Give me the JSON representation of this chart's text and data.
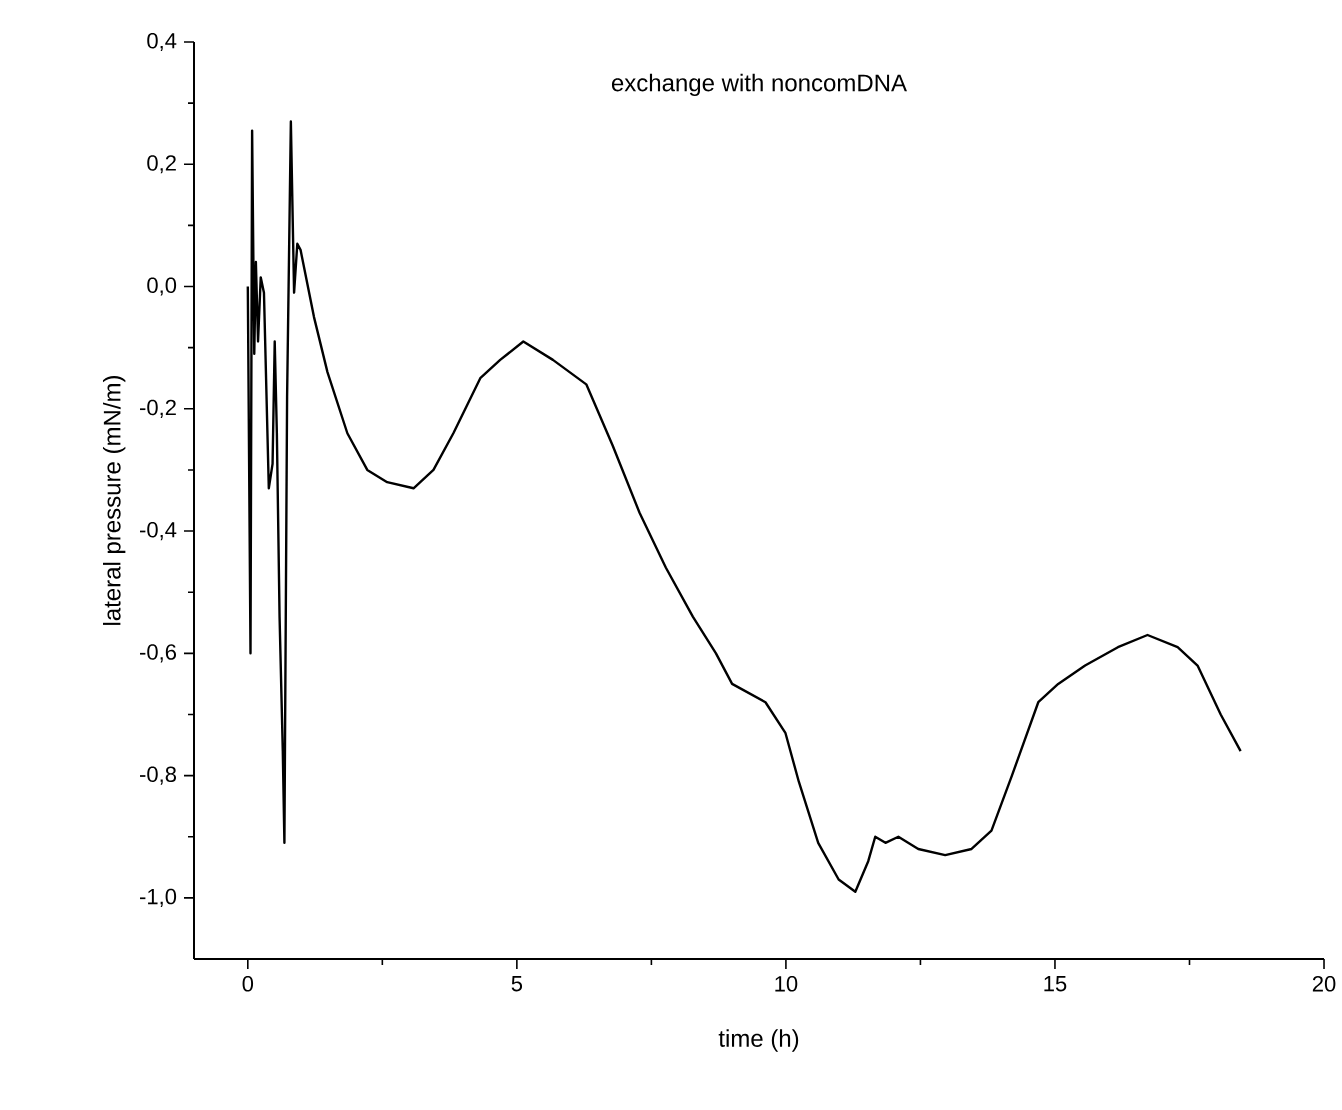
{
  "chart_data": {
    "type": "line",
    "title": "exchange with noncomDNA",
    "xlabel": "time (h)",
    "ylabel": "lateral pressure (mN/m)",
    "xlim": [
      -1,
      20
    ],
    "ylim": [
      -1.1,
      0.4
    ],
    "xticks": [
      0,
      5,
      10,
      15,
      20
    ],
    "yticks": [
      {
        "value": 0.4,
        "label": "0,4"
      },
      {
        "value": 0.2,
        "label": "0,2"
      },
      {
        "value": 0.0,
        "label": "0,0"
      },
      {
        "value": -0.2,
        "label": "-0,2"
      },
      {
        "value": -0.4,
        "label": "-0,4"
      },
      {
        "value": -0.6,
        "label": "-0,6"
      },
      {
        "value": -0.8,
        "label": "-0,8"
      },
      {
        "value": -1.0,
        "label": "-1,0"
      }
    ],
    "grid": false,
    "marker": "none",
    "line_style": "solid",
    "series": [
      {
        "color": "#000000",
        "x": [
          0.0,
          0.05,
          0.08,
          0.12,
          0.15,
          0.19,
          0.24,
          0.3,
          0.39,
          0.46,
          0.5,
          0.54,
          0.59,
          0.65,
          0.68,
          0.73,
          0.8,
          0.86,
          0.92,
          0.98,
          1.23,
          1.48,
          1.85,
          2.22,
          2.59,
          3.08,
          3.45,
          3.82,
          4.32,
          4.69,
          5.12,
          5.67,
          6.29,
          6.78,
          7.28,
          7.77,
          8.27,
          8.7,
          9.0,
          9.62,
          9.99,
          10.24,
          10.6,
          10.98,
          11.29,
          11.53,
          11.66,
          11.85,
          12.09,
          12.46,
          12.96,
          13.45,
          13.82,
          14.2,
          14.69,
          15.06,
          15.56,
          16.17,
          16.72,
          17.28,
          17.65,
          18.08,
          18.45
        ],
        "values": [
          0.0,
          -0.6,
          0.255,
          -0.11,
          0.04,
          -0.09,
          0.015,
          -0.01,
          -0.33,
          -0.29,
          -0.09,
          -0.24,
          -0.54,
          -0.76,
          -0.91,
          -0.18,
          0.27,
          -0.01,
          0.07,
          0.06,
          -0.05,
          -0.14,
          -0.24,
          -0.3,
          -0.32,
          -0.33,
          -0.3,
          -0.24,
          -0.15,
          -0.12,
          -0.09,
          -0.12,
          -0.16,
          -0.26,
          -0.37,
          -0.46,
          -0.54,
          -0.6,
          -0.65,
          -0.68,
          -0.73,
          -0.81,
          -0.91,
          -0.97,
          -0.99,
          -0.94,
          -0.9,
          -0.91,
          -0.9,
          -0.92,
          -0.93,
          -0.92,
          -0.89,
          -0.8,
          -0.68,
          -0.65,
          -0.62,
          -0.59,
          -0.57,
          -0.59,
          -0.62,
          -0.7,
          -0.76
        ]
      }
    ]
  }
}
